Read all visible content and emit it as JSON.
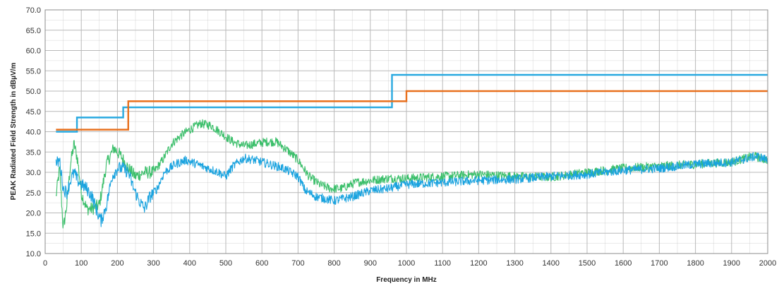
{
  "chart_data": {
    "type": "line",
    "xlabel": "Frequency in MHz",
    "ylabel": "PEAK Radiated Field Strength in dBµV/m",
    "xlim": [
      0,
      2000
    ],
    "ylim": [
      10,
      70
    ],
    "x_ticks": [
      "0",
      "100",
      "200",
      "300",
      "400",
      "500",
      "600",
      "700",
      "800",
      "900",
      "1000",
      "1100",
      "1200",
      "1300",
      "1400",
      "1500",
      "1600",
      "1700",
      "1800",
      "1900",
      "2000"
    ],
    "y_ticks": [
      "10.0",
      "15.0",
      "20.0",
      "25.0",
      "30.0",
      "35.0",
      "40.0",
      "45.0",
      "50.0",
      "55.0",
      "60.0",
      "65.0",
      "70.0"
    ],
    "grid": true,
    "legend": "none",
    "colors": {
      "limit_blue": "#29a9e0",
      "limit_orange": "#e8701e",
      "trace_blue": "#1aa3df",
      "trace_green": "#3cbf6b",
      "grid": "#b9b9b9"
    },
    "series": [
      {
        "color": "#29a9e0",
        "style": "step-limit",
        "x": [
          30,
          88,
          88,
          216,
          216,
          230,
          230,
          960,
          960,
          2000
        ],
        "y": [
          40,
          40,
          43.5,
          43.5,
          46,
          46,
          46,
          46,
          54,
          54
        ]
      },
      {
        "color": "#e8701e",
        "style": "step-limit",
        "x": [
          30,
          230,
          230,
          1000,
          1000,
          2000
        ],
        "y": [
          40.5,
          40.5,
          47.5,
          47.5,
          50,
          50
        ]
      },
      {
        "color": "#3cbf6b",
        "style": "noisy-trace",
        "x": [
          30,
          40,
          50,
          60,
          70,
          80,
          90,
          100,
          115,
          130,
          150,
          170,
          190,
          210,
          230,
          250,
          275,
          300,
          325,
          350,
          375,
          400,
          430,
          460,
          490,
          520,
          550,
          580,
          610,
          640,
          670,
          700,
          730,
          760,
          790,
          820,
          860,
          900,
          950,
          1000,
          1100,
          1200,
          1300,
          1400,
          1500,
          1600,
          1700,
          1800,
          1900,
          1960,
          2000
        ],
        "y": [
          24,
          31,
          16,
          22,
          32,
          37,
          33,
          25,
          21,
          21,
          22,
          32,
          36,
          34,
          31,
          29,
          30,
          30,
          33,
          37,
          39,
          40.5,
          42,
          41.5,
          39.5,
          37.5,
          36.5,
          37,
          37.5,
          37.5,
          35.5,
          33,
          29,
          27,
          26,
          26,
          27.5,
          28,
          28.5,
          28.5,
          29,
          29.5,
          29,
          28.8,
          30,
          31,
          31.5,
          32,
          32.5,
          34,
          33
        ]
      },
      {
        "color": "#1aa3df",
        "style": "noisy-trace",
        "x": [
          30,
          40,
          50,
          60,
          70,
          80,
          90,
          100,
          115,
          130,
          145,
          155,
          170,
          185,
          200,
          215,
          230,
          245,
          260,
          275,
          290,
          310,
          330,
          360,
          390,
          420,
          450,
          480,
          500,
          520,
          550,
          580,
          620,
          660,
          700,
          720,
          750,
          800,
          850,
          900,
          950,
          1000,
          1100,
          1200,
          1300,
          1400,
          1500,
          1600,
          1700,
          1800,
          1900,
          1970,
          2000
        ],
        "y": [
          32,
          33,
          26,
          25,
          28,
          30,
          28,
          27,
          26,
          24,
          20,
          18,
          22,
          29,
          31,
          31,
          30,
          26,
          23,
          21,
          24,
          26,
          30,
          32,
          33,
          32,
          31,
          30,
          29,
          31.5,
          33.5,
          33,
          32,
          31,
          29,
          25.5,
          24,
          23,
          24,
          25.5,
          26,
          27,
          27.5,
          28,
          28.3,
          29,
          29.5,
          30.5,
          31,
          32,
          32.5,
          34,
          33
        ]
      }
    ]
  }
}
